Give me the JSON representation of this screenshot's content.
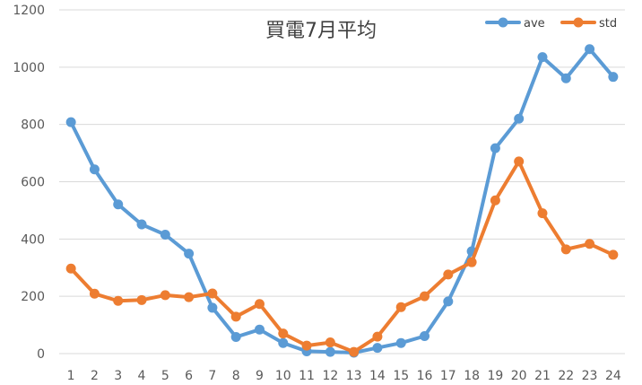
{
  "chart_data": {
    "type": "line",
    "title": "買電7月平均",
    "xlabel": "",
    "ylabel": "",
    "categories": [
      "1",
      "2",
      "3",
      "4",
      "5",
      "6",
      "7",
      "8",
      "9",
      "10",
      "11",
      "12",
      "13",
      "14",
      "15",
      "16",
      "17",
      "18",
      "19",
      "20",
      "21",
      "22",
      "23",
      "24"
    ],
    "ylim": [
      0,
      1200
    ],
    "yticks": [
      0,
      200,
      400,
      600,
      800,
      1000,
      1200
    ],
    "grid": true,
    "legend_position": "top-right",
    "series": [
      {
        "name": "ave",
        "color": "#5b9bd5",
        "values": [
          808,
          643,
          521,
          451,
          415,
          349,
          160,
          58,
          84,
          37,
          8,
          6,
          3,
          20,
          37,
          61,
          182,
          357,
          717,
          820,
          1035,
          961,
          1063,
          966
        ]
      },
      {
        "name": "std",
        "color": "#ed7d31",
        "values": [
          297,
          209,
          184,
          187,
          204,
          197,
          210,
          129,
          173,
          70,
          28,
          39,
          6,
          59,
          162,
          200,
          276,
          319,
          535,
          671,
          490,
          364,
          383,
          345
        ]
      }
    ]
  }
}
